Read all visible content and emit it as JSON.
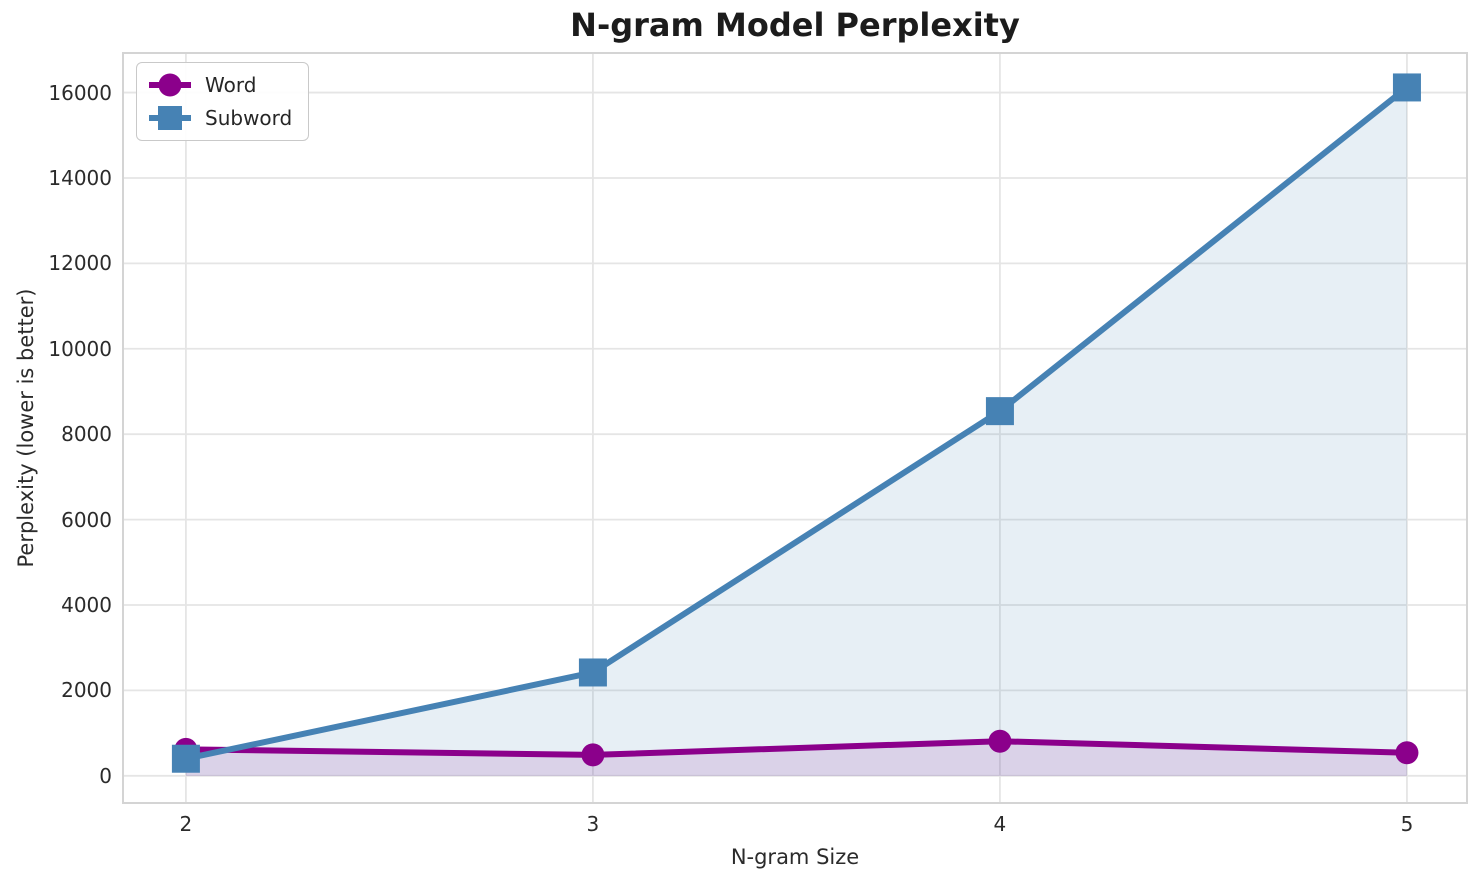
{
  "chart_data": {
    "type": "line",
    "title": "N-gram Model Perplexity",
    "xlabel": "N-gram Size",
    "ylabel": "Perplexity (lower is better)",
    "x": [
      2,
      3,
      4,
      5
    ],
    "series": [
      {
        "name": "Word",
        "values": [
          620,
          490,
          810,
          540
        ],
        "color": "#8B008B",
        "marker": "circle",
        "fill_alpha": 0.13
      },
      {
        "name": "Subword",
        "values": [
          400,
          2420,
          8540,
          16120
        ],
        "color": "#4682B4",
        "marker": "square",
        "fill_alpha": 0.13
      }
    ],
    "xticks": [
      2,
      3,
      4,
      5
    ],
    "yticks": [
      0,
      2000,
      4000,
      6000,
      8000,
      10000,
      12000,
      14000,
      16000
    ],
    "xlim": [
      1.843,
      5.15
    ],
    "ylim": [
      -660,
      16950
    ],
    "grid": true,
    "area_fill_to_zero": true,
    "legend_position": "upper left",
    "grid_color": "#e5e5e5",
    "spine_color": "#d4d4d4"
  }
}
